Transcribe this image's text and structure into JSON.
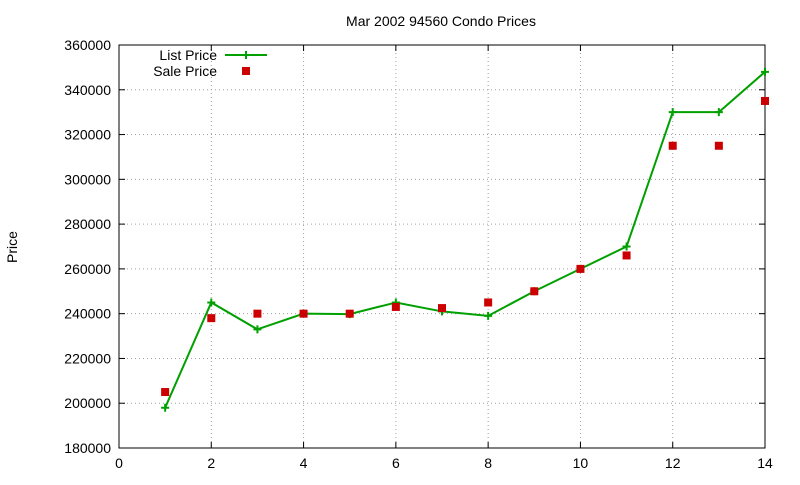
{
  "chart_data": {
    "type": "line",
    "title": "Mar 2002 94560 Condo Prices",
    "xlabel": "",
    "ylabel": "Price",
    "xlim": [
      0,
      14
    ],
    "ylim": [
      180000,
      360000
    ],
    "xticks": [
      0,
      2,
      4,
      6,
      8,
      10,
      12,
      14
    ],
    "yticks": [
      180000,
      200000,
      220000,
      240000,
      260000,
      280000,
      300000,
      320000,
      340000,
      360000
    ],
    "grid": true,
    "legend_position": "top-left",
    "series": [
      {
        "name": "List Price",
        "style": "linespoints",
        "marker": "plus",
        "color": "#00a000",
        "x": [
          1,
          2,
          3,
          4,
          5,
          6,
          7,
          8,
          9,
          10,
          11,
          12,
          13,
          14
        ],
        "y": [
          198000,
          245000,
          233000,
          240000,
          239800,
          245000,
          241000,
          239000,
          250000,
          260000,
          270000,
          330000,
          330000,
          348000
        ]
      },
      {
        "name": "Sale Price",
        "style": "points",
        "marker": "square",
        "color": "#cc0000",
        "x": [
          1,
          2,
          3,
          4,
          5,
          6,
          7,
          8,
          9,
          10,
          11,
          12,
          13,
          14
        ],
        "y": [
          205000,
          238000,
          240000,
          240000,
          240000,
          243000,
          242500,
          245000,
          250000,
          260000,
          266000,
          315000,
          315000,
          335000
        ]
      }
    ]
  }
}
